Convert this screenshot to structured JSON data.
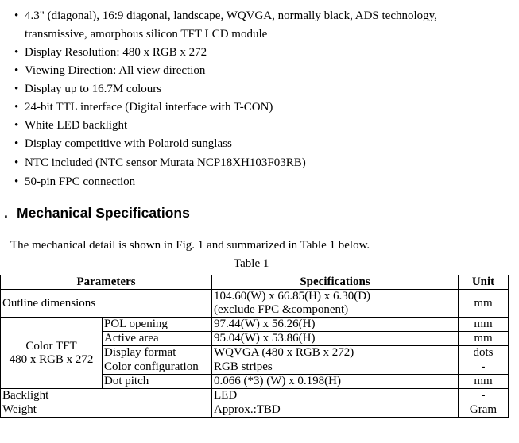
{
  "bullets": [
    "4.3\" (diagonal), 16:9 diagonal, landscape, WQVGA, normally black, ADS technology, transmissive, amorphous silicon TFT LCD module",
    "Display Resolution: 480 x RGB x 272",
    "Viewing Direction: All view direction",
    "Display up to 16.7M colours",
    "24-bit TTL interface (Digital interface with T-CON)",
    "White LED backlight",
    "Display competitive with Polaroid sunglass",
    "NTC included (NTC sensor Murata NCP18XH103F03RB)",
    "50-pin FPC connection"
  ],
  "section": {
    "number": ".",
    "title": "Mechanical Specifications"
  },
  "paragraph": "The mechanical detail is shown in Fig. 1 and summarized in Table 1 below.",
  "table": {
    "caption": "Table 1",
    "headers": [
      "Parameters",
      "Specifications",
      "Unit"
    ],
    "outline": {
      "param": "Outline dimensions",
      "spec1": "104.60(W) x 66.85(H) x 6.30(D)",
      "spec2": "(exclude FPC &component)",
      "unit": "mm"
    },
    "group": {
      "line1": "Color TFT",
      "line2": "480 x RGB x 272"
    },
    "rows": [
      {
        "param": "POL opening",
        "spec": "97.44(W) x 56.26(H)",
        "unit": "mm"
      },
      {
        "param": "Active area",
        "spec": "95.04(W) x 53.86(H)",
        "unit": "mm"
      },
      {
        "param": "Display format",
        "spec": "WQVGA (480 x RGB x 272)",
        "unit": "dots"
      },
      {
        "param": "Color configuration",
        "spec": "RGB stripes",
        "unit": "-"
      },
      {
        "param": "Dot pitch",
        "spec": "0.066 (*3) (W) x 0.198(H)",
        "unit": "mm"
      }
    ],
    "backlight": {
      "param": "Backlight",
      "spec": "LED",
      "unit": "-"
    },
    "weight": {
      "param": "Weight",
      "spec": "Approx.:TBD",
      "unit": "Gram"
    }
  }
}
